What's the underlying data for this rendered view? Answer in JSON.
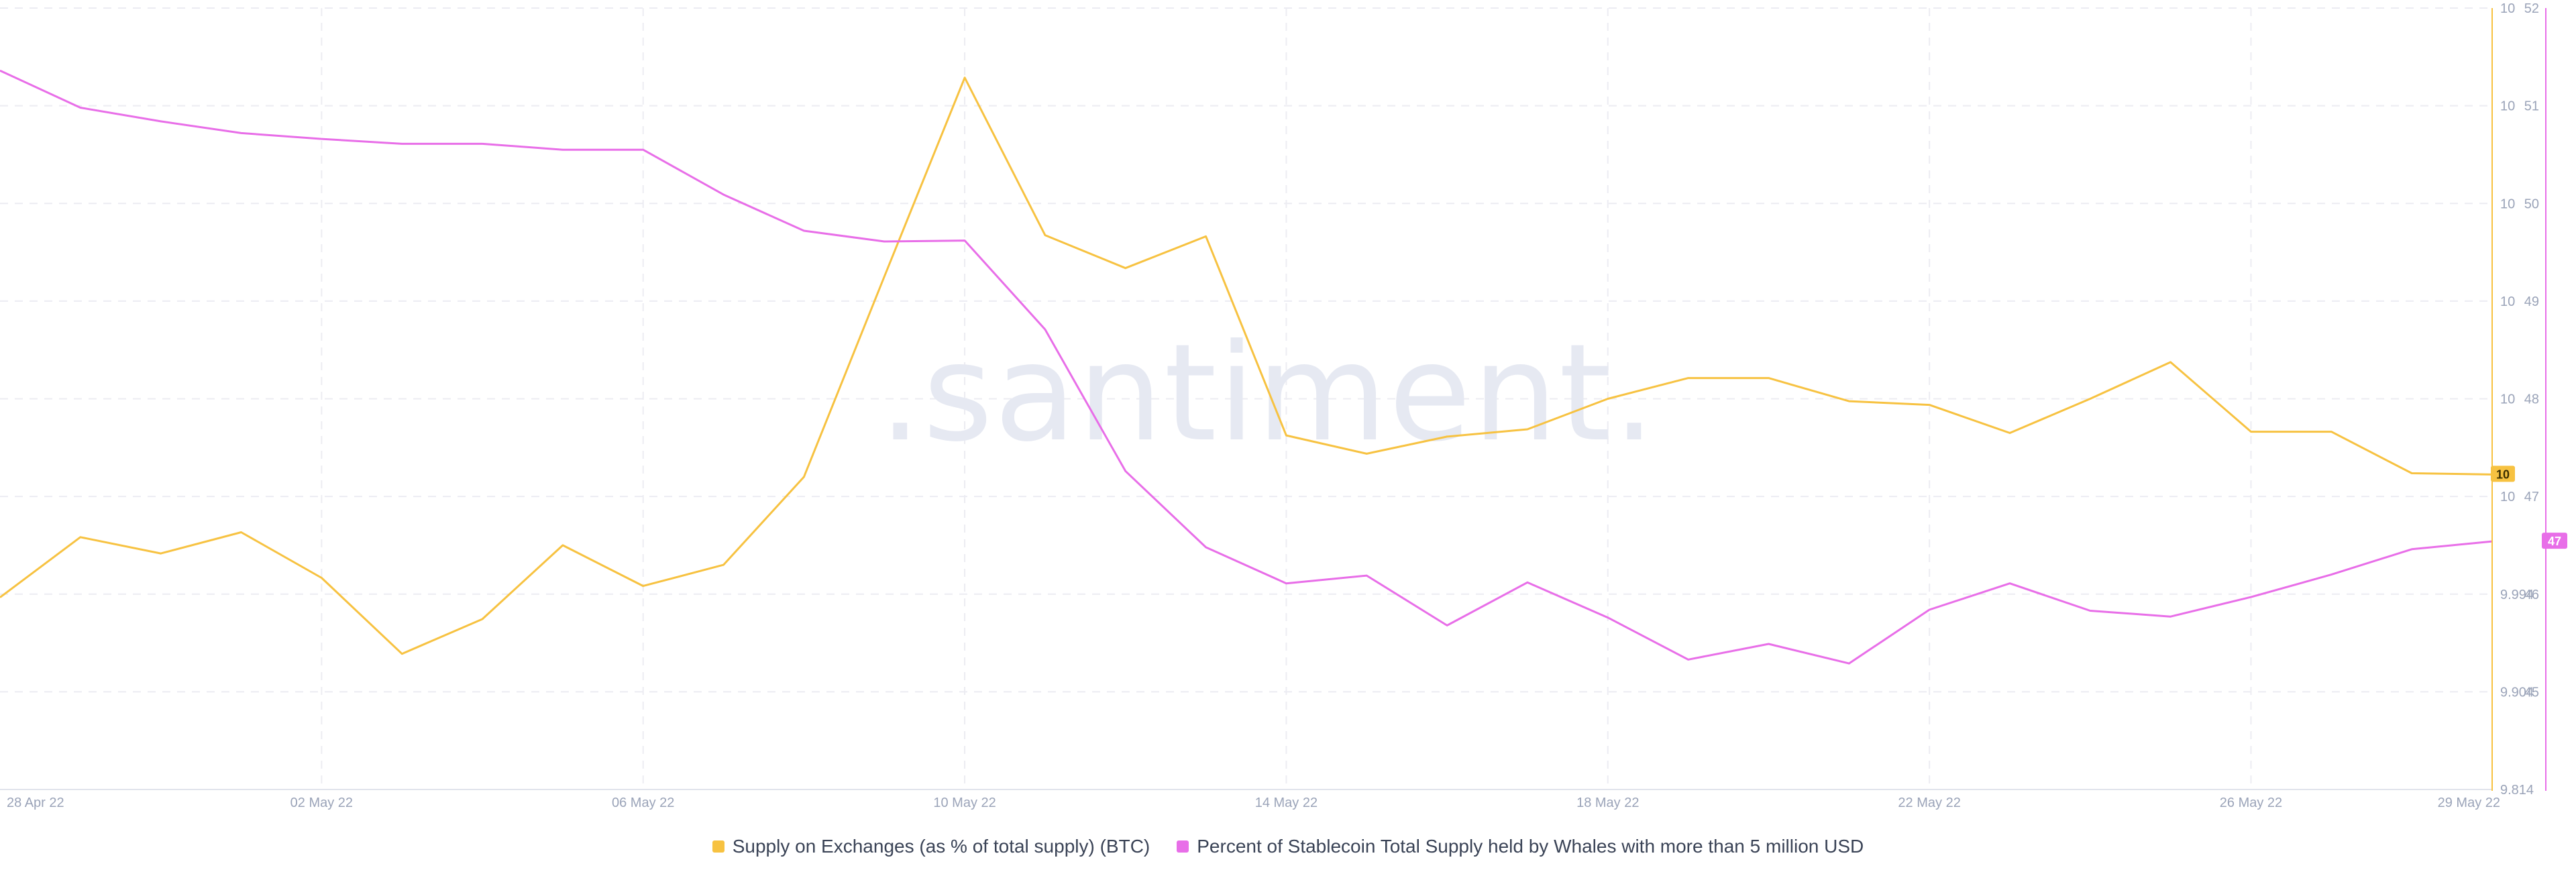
{
  "watermark": ".santiment.",
  "chart_data": {
    "type": "line",
    "x_tick_labels": [
      "28 Apr 22",
      "02 May 22",
      "06 May 22",
      "10 May 22",
      "14 May 22",
      "18 May 22",
      "22 May 22",
      "26 May 22",
      "29 May 22"
    ],
    "x": [
      "2022-04-28",
      "2022-04-29",
      "2022-04-30",
      "2022-05-01",
      "2022-05-02",
      "2022-05-03",
      "2022-05-04",
      "2022-05-05",
      "2022-05-06",
      "2022-05-07",
      "2022-05-08",
      "2022-05-09",
      "2022-05-10",
      "2022-05-11",
      "2022-05-12",
      "2022-05-13",
      "2022-05-14",
      "2022-05-15",
      "2022-05-16",
      "2022-05-17",
      "2022-05-18",
      "2022-05-19",
      "2022-05-20",
      "2022-05-21",
      "2022-05-22",
      "2022-05-23",
      "2022-05-24",
      "2022-05-25",
      "2022-05-26",
      "2022-05-27",
      "2022-05-28",
      "2022-05-29"
    ],
    "series": [
      {
        "name": "Supply on Exchanges (as % of total supply) (BTC)",
        "color": "#f7c241",
        "axis": "right-inner",
        "values": [
          9.9937,
          9.9975,
          9.9965,
          9.9978,
          9.995,
          9.9885,
          9.9917,
          9.997,
          9.9945,
          9.9958,
          10.0016,
          10.018,
          10.0343,
          10.0214,
          10.0187,
          10.0213,
          10.005,
          10.0035,
          10.0049,
          10.0055,
          10.008,
          10.0097,
          10.0097,
          10.0078,
          10.0075,
          10.0052,
          10.008,
          10.011,
          10.0053,
          10.0053,
          10.0019,
          10.0018
        ]
      },
      {
        "name": "Percent of Stablecoin Total Supply held by Whales with more than 5 million USD",
        "color": "#e86ee8",
        "axis": "right-outer",
        "values": [
          51.36,
          50.98,
          50.84,
          50.72,
          50.66,
          50.61,
          50.61,
          50.55,
          50.55,
          50.09,
          49.72,
          49.61,
          49.62,
          48.71,
          47.26,
          46.48,
          46.11,
          46.19,
          45.68,
          46.12,
          45.76,
          45.33,
          45.49,
          45.29,
          45.84,
          46.11,
          45.83,
          45.77,
          45.97,
          46.2,
          46.46,
          46.54
        ]
      }
    ],
    "y_inner_tick_labels": [
      "10",
      "10",
      "10",
      "10",
      "10",
      "10",
      "9.994",
      "9.904",
      "9.814"
    ],
    "y_outer_tick_labels": [
      "52",
      "51",
      "50",
      "49",
      "48",
      "47",
      "46",
      "45"
    ],
    "y_outer_range": [
      45,
      52
    ],
    "current_value_badges": [
      "10",
      "47"
    ],
    "grid": true,
    "legend_position": "bottom"
  }
}
